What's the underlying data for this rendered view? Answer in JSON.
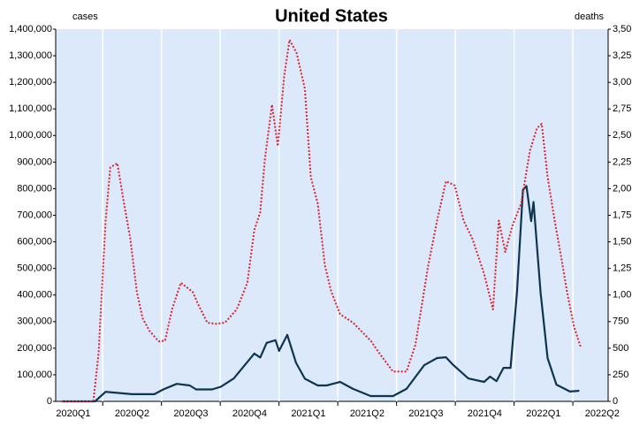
{
  "chart_data": {
    "type": "line",
    "title": "United States",
    "y_label": "cases",
    "y2_label": "deaths",
    "categories": [
      "2020Q1",
      "2020Q2",
      "2020Q3",
      "2020Q4",
      "2021Q1",
      "2021Q2",
      "2021Q3",
      "2021Q4",
      "2022Q1",
      "2022Q2"
    ],
    "xlim": [
      0.2,
      9.6
    ],
    "xticks": [
      1,
      2,
      3,
      4,
      5,
      6,
      7,
      8,
      9
    ],
    "grid": true,
    "ylim": [
      0,
      1400000
    ],
    "yticks": [
      0,
      {
        "value": 100000,
        "label": "100,000"
      },
      {
        "value": 200000,
        "label": "200,000"
      },
      {
        "value": 300000,
        "label": "300,000"
      },
      {
        "value": 400000,
        "label": "400,000"
      },
      {
        "value": 500000,
        "label": "500,000"
      },
      {
        "value": 600000,
        "label": "600,000"
      },
      {
        "value": 700000,
        "label": "700,000"
      },
      {
        "value": 800000,
        "label": "800,000"
      },
      {
        "value": 900000,
        "label": "900,000"
      },
      {
        "value": 1000000,
        "label": "1,000,000"
      },
      {
        "value": 1100000,
        "label": "1,100,000"
      },
      {
        "value": 1200000,
        "label": "1,200,000"
      },
      {
        "value": 1300000,
        "label": "1,300,000"
      },
      {
        "value": 1400000,
        "label": "1,400,000"
      }
    ],
    "y2lim": [
      0,
      3500
    ],
    "y2ticks": [
      0,
      250,
      500,
      750,
      {
        "value": 1000,
        "label": "1,00"
      },
      {
        "value": 1250,
        "label": "1,25"
      },
      {
        "value": 1500,
        "label": "1,50"
      },
      {
        "value": 1750,
        "label": "1,75"
      },
      {
        "value": 2000,
        "label": "2,00"
      },
      {
        "value": 2250,
        "label": "2,25"
      },
      {
        "value": 2500,
        "label": "2,50"
      },
      {
        "value": 2750,
        "label": "2,75"
      },
      {
        "value": 3000,
        "label": "3,00"
      },
      {
        "value": 3250,
        "label": "3,25"
      },
      {
        "value": 3500,
        "label": "3,50"
      }
    ],
    "series": [
      {
        "name": "cases",
        "color": "#0d3550",
        "dash": false,
        "x": [
          0.3,
          0.87,
          1.05,
          1.5,
          1.88,
          2.03,
          2.26,
          2.48,
          2.59,
          2.86,
          3.01,
          3.23,
          3.43,
          3.58,
          3.68,
          3.79,
          3.94,
          4.0,
          4.14,
          4.29,
          4.44,
          4.66,
          4.81,
          5.04,
          5.26,
          5.56,
          5.94,
          6.17,
          6.47,
          6.69,
          6.84,
          6.95,
          7.22,
          7.49,
          7.59,
          7.7,
          7.82,
          7.94,
          8.05,
          8.15,
          8.21,
          8.29,
          8.33,
          8.45,
          8.57,
          8.72,
          8.95,
          9.11
        ],
        "values": [
          0,
          0,
          36000,
          27000,
          27000,
          45000,
          66000,
          60000,
          45000,
          45000,
          55000,
          86000,
          140000,
          180000,
          165000,
          220000,
          230000,
          190000,
          250000,
          145000,
          85000,
          60000,
          60000,
          73000,
          47000,
          20000,
          20000,
          47000,
          136000,
          163000,
          166000,
          140000,
          86000,
          73000,
          93000,
          76000,
          126000,
          126000,
          412000,
          795000,
          810000,
          678000,
          750000,
          412000,
          163000,
          63000,
          37000,
          40000
        ]
      },
      {
        "name": "deaths",
        "color": "#e0202a",
        "dash": true,
        "axis": "y2",
        "x": [
          0.3,
          0.84,
          0.93,
          1.05,
          1.13,
          1.25,
          1.35,
          1.47,
          1.58,
          1.68,
          1.8,
          1.95,
          2.06,
          2.18,
          2.33,
          2.53,
          2.63,
          2.78,
          2.93,
          3.08,
          3.28,
          3.46,
          3.58,
          3.68,
          3.76,
          3.88,
          3.98,
          4.09,
          4.18,
          4.3,
          4.44,
          4.54,
          4.66,
          4.78,
          4.89,
          5.04,
          5.26,
          5.41,
          5.56,
          5.71,
          5.94,
          6.17,
          6.32,
          6.54,
          6.69,
          6.84,
          6.99,
          7.14,
          7.29,
          7.49,
          7.64,
          7.74,
          7.85,
          7.97,
          8.12,
          8.27,
          8.39,
          8.47,
          8.57,
          8.69,
          8.8,
          8.9,
          9.02,
          9.13
        ],
        "values": [
          0,
          0,
          450,
          1700,
          2200,
          2240,
          1900,
          1530,
          1030,
          780,
          660,
          565,
          570,
          865,
          1115,
          1030,
          905,
          740,
          730,
          740,
          865,
          1115,
          1610,
          1780,
          2280,
          2790,
          2400,
          3065,
          3400,
          3275,
          2940,
          2110,
          1860,
          1280,
          1030,
          820,
          740,
          655,
          570,
          450,
          280,
          280,
          530,
          1280,
          1700,
          2070,
          2030,
          1700,
          1530,
          1200,
          865,
          1700,
          1405,
          1650,
          1860,
          2360,
          2570,
          2610,
          2110,
          1700,
          1360,
          1030,
          700,
          515
        ]
      }
    ]
  }
}
